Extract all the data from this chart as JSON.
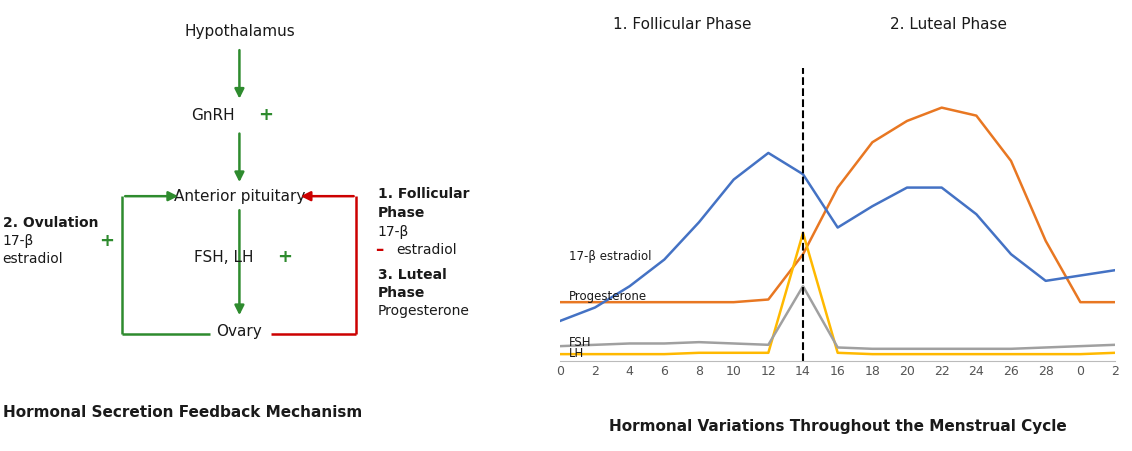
{
  "left_title": "Hormonal Secretion Feedback Mechanism",
  "right_title": "Hormonal Variations Throughout the Menstrual Cycle",
  "phase1_label": "1. Follicular Phase",
  "phase2_label": "2. Luteal Phase",
  "progesterone_x": [
    0,
    2,
    4,
    6,
    8,
    10,
    12,
    14,
    16,
    18,
    20,
    22,
    24,
    26,
    28,
    30,
    32
  ],
  "progesterone_y": [
    2.2,
    2.2,
    2.2,
    2.2,
    2.2,
    2.2,
    2.3,
    4.0,
    6.5,
    8.2,
    9.0,
    9.5,
    9.2,
    7.5,
    4.5,
    2.2,
    2.2
  ],
  "estradiol_x": [
    0,
    2,
    4,
    6,
    8,
    10,
    12,
    14,
    16,
    18,
    20,
    22,
    24,
    26,
    28,
    30,
    32
  ],
  "estradiol_y": [
    1.5,
    2.0,
    2.8,
    3.8,
    5.2,
    6.8,
    7.8,
    7.0,
    5.0,
    5.8,
    6.5,
    6.5,
    5.5,
    4.0,
    3.0,
    3.2,
    3.4
  ],
  "lh_x": [
    0,
    2,
    4,
    6,
    8,
    10,
    12,
    14,
    16,
    18,
    20,
    22,
    24,
    26,
    28,
    30,
    32
  ],
  "lh_y": [
    0.25,
    0.25,
    0.25,
    0.25,
    0.3,
    0.3,
    0.3,
    4.8,
    0.3,
    0.25,
    0.25,
    0.25,
    0.25,
    0.25,
    0.25,
    0.25,
    0.3
  ],
  "fsh_x": [
    0,
    2,
    4,
    6,
    8,
    10,
    12,
    14,
    16,
    18,
    20,
    22,
    24,
    26,
    28,
    30,
    32
  ],
  "fsh_y": [
    0.55,
    0.6,
    0.65,
    0.65,
    0.7,
    0.65,
    0.6,
    2.8,
    0.5,
    0.45,
    0.45,
    0.45,
    0.45,
    0.45,
    0.5,
    0.55,
    0.6
  ],
  "progesterone_color": "#E87722",
  "estradiol_color": "#4472C4",
  "lh_color": "#FFB900",
  "fsh_color": "#A0A0A0",
  "green_color": "#2E8B2E",
  "red_color": "#CC0000",
  "black_color": "#1A1A1A",
  "tick_labels": [
    "0",
    "2",
    "4",
    "6",
    "8",
    "10",
    "12",
    "14",
    "16",
    "18",
    "20",
    "22",
    "24",
    "26",
    "28",
    "0",
    "2"
  ]
}
